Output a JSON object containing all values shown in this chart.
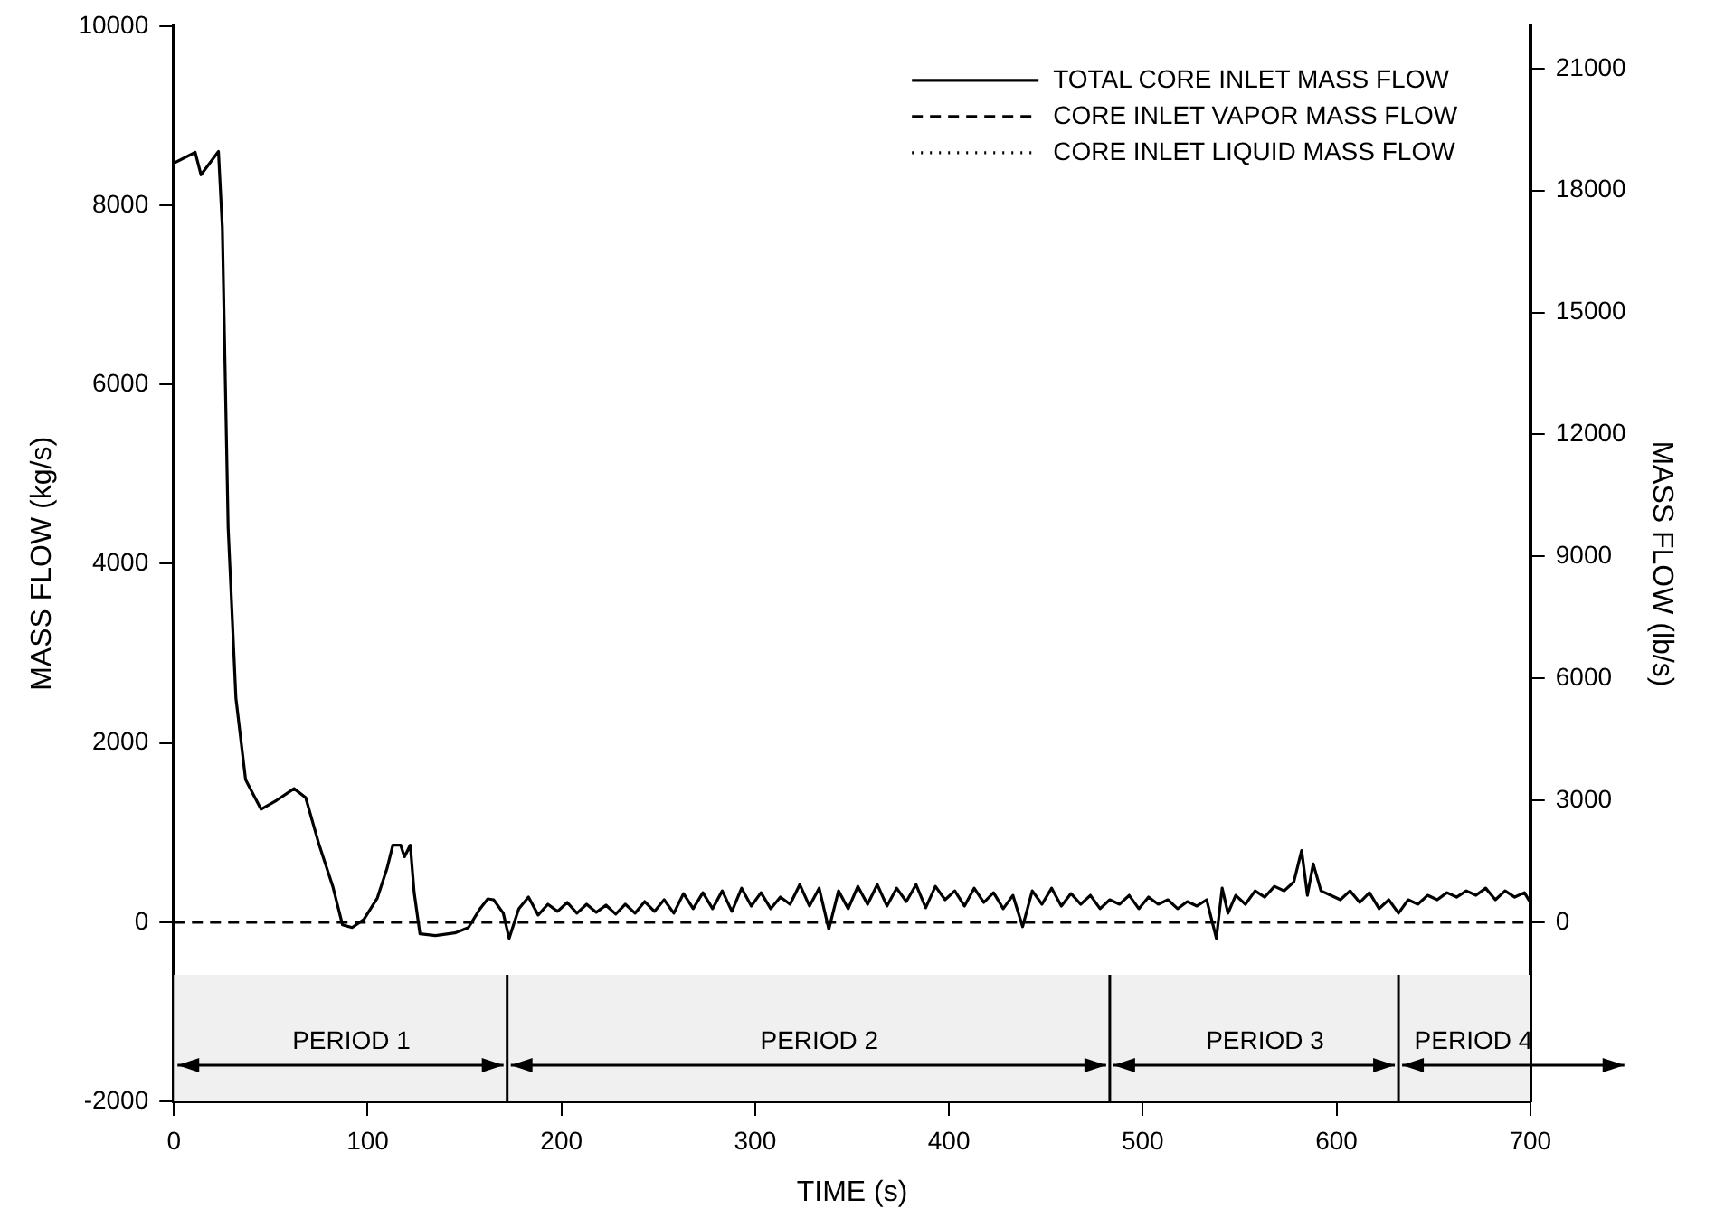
{
  "chart_data": {
    "type": "line",
    "xlabel": "TIME (s)",
    "ylabel": "MASS FLOW (kg/s)",
    "y2label": "MASS FLOW (lb/s)",
    "xlim": [
      0,
      700
    ],
    "xticks": [
      0,
      100,
      200,
      300,
      400,
      500,
      600,
      700
    ],
    "ylim": [
      -2000,
      10000
    ],
    "yticks": [
      -2000,
      0,
      2000,
      4000,
      6000,
      8000,
      10000
    ],
    "y2lim": [
      -4409,
      22046
    ],
    "y2ticks": [
      0,
      3000,
      6000,
      9000,
      12000,
      15000,
      18000,
      21000
    ],
    "grid": false,
    "legend": "top right",
    "marker": "none",
    "series": [
      {
        "name": "TOTAL CORE INLET MASS FLOW",
        "color": "#000000",
        "line_style": "solid",
        "x": [
          0,
          11,
          14,
          23,
          25,
          28,
          32,
          37,
          45,
          53,
          62,
          68,
          75,
          82,
          87,
          92,
          98,
          105,
          110,
          113,
          117,
          119,
          122,
          124,
          127,
          135,
          145,
          152,
          158,
          162,
          165,
          170,
          173,
          178,
          183,
          188,
          193,
          198,
          203,
          208,
          213,
          218,
          223,
          228,
          233,
          238,
          243,
          248,
          253,
          258,
          263,
          268,
          273,
          278,
          283,
          288,
          293,
          298,
          303,
          308,
          313,
          318,
          323,
          328,
          333,
          338,
          343,
          348,
          353,
          358,
          363,
          368,
          373,
          378,
          383,
          388,
          393,
          398,
          403,
          408,
          413,
          418,
          423,
          428,
          433,
          438,
          443,
          448,
          453,
          458,
          463,
          468,
          473,
          478,
          483,
          488,
          493,
          498,
          503,
          508,
          513,
          518,
          523,
          528,
          533,
          538,
          541,
          544,
          548,
          553,
          558,
          563,
          568,
          573,
          578,
          582,
          585,
          588,
          592,
          597,
          602,
          607,
          612,
          617,
          622,
          627,
          632,
          637,
          642,
          647,
          652,
          657,
          662,
          667,
          672,
          677,
          682,
          687,
          692,
          697,
          700
        ],
        "values": [
          8470,
          8590,
          8340,
          8600,
          7750,
          4400,
          2500,
          1590,
          1260,
          1360,
          1490,
          1390,
          860,
          400,
          -30,
          -60,
          30,
          270,
          600,
          860,
          860,
          730,
          860,
          330,
          -130,
          -150,
          -120,
          -60,
          150,
          260,
          250,
          100,
          -180,
          150,
          280,
          80,
          200,
          120,
          220,
          100,
          200,
          110,
          190,
          90,
          200,
          100,
          230,
          120,
          250,
          100,
          320,
          150,
          330,
          150,
          350,
          120,
          380,
          180,
          330,
          150,
          280,
          200,
          420,
          180,
          380,
          -80,
          350,
          150,
          400,
          200,
          420,
          180,
          380,
          230,
          420,
          160,
          400,
          250,
          350,
          180,
          380,
          220,
          330,
          150,
          300,
          -50,
          350,
          200,
          380,
          180,
          320,
          200,
          300,
          150,
          250,
          200,
          300,
          150,
          280,
          200,
          250,
          150,
          230,
          180,
          250,
          -180,
          380,
          100,
          300,
          200,
          350,
          280,
          400,
          350,
          450,
          800,
          300,
          650,
          350,
          300,
          250,
          350,
          220,
          330,
          150,
          250,
          100,
          250,
          200,
          300,
          250,
          330,
          280,
          350,
          300,
          380,
          250,
          350,
          280,
          330,
          220
        ]
      },
      {
        "name": "CORE INLET VAPOR MASS FLOW",
        "color": "#000000",
        "line_style": "dashed",
        "x": [
          0,
          100,
          200,
          300,
          400,
          500,
          600,
          700
        ],
        "values": [
          0,
          0,
          0,
          0,
          0,
          0,
          0,
          0
        ]
      },
      {
        "name": "CORE INLET LIQUID MASS FLOW",
        "color": "#000000",
        "line_style": "dotted"
      }
    ],
    "ref_lines": [
      {
        "axis": "x",
        "value": 172
      },
      {
        "axis": "x",
        "value": 483
      },
      {
        "axis": "x",
        "value": 632
      }
    ],
    "bands": [
      {
        "axis": "x",
        "from": 0,
        "to": 172,
        "label": "PERIOD 1",
        "color": "#f0f0f0"
      },
      {
        "axis": "x",
        "from": 172,
        "to": 483,
        "label": "PERIOD 2",
        "color": "#f0f0f0"
      },
      {
        "axis": "x",
        "from": 483,
        "to": 632,
        "label": "PERIOD 3",
        "color": "#f0f0f0"
      },
      {
        "axis": "x",
        "from": 632,
        "to": 700,
        "label": "PERIOD 4",
        "color": "#f0f0f0"
      }
    ]
  }
}
